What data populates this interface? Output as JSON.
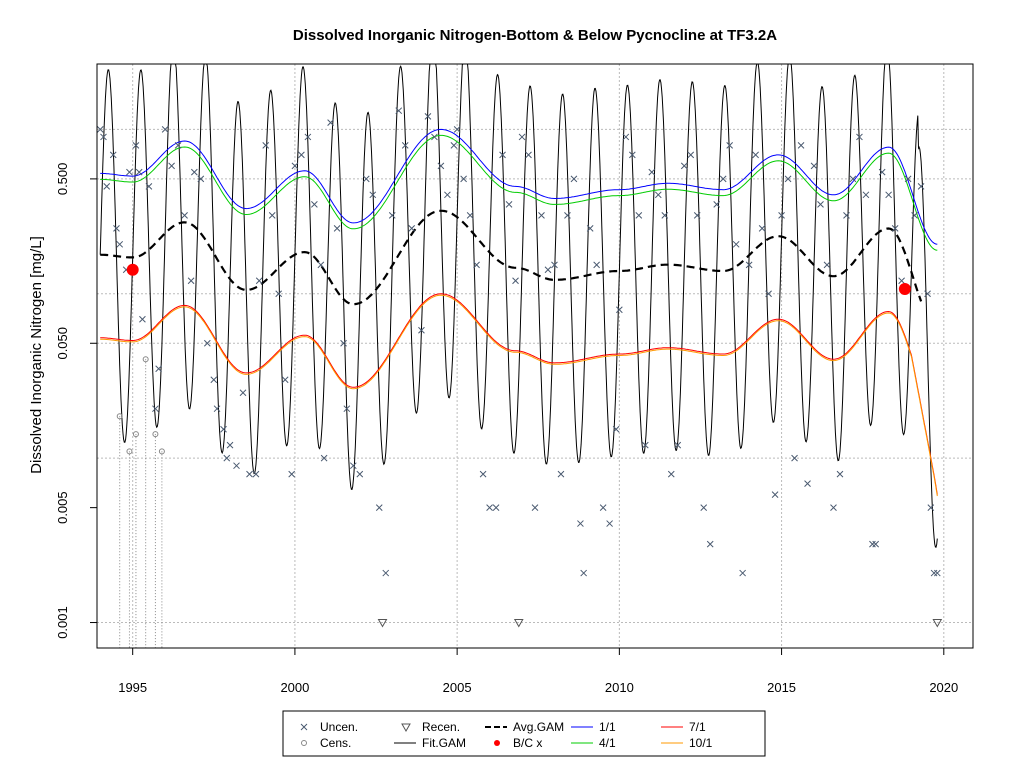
{
  "chart_data": {
    "type": "scatter",
    "title": "Dissolved Inorganic Nitrogen-Bottom & Below Pycnocline at TF3.2A",
    "xlabel": "",
    "ylabel": "Dissolved Inorganic Nitrogen [mg/L]",
    "xlim": [
      1993.9,
      2020.9
    ],
    "ylim": [
      0.0007,
      2.5
    ],
    "y_scale": "log",
    "grid": true,
    "legend_position": "bottom",
    "x_ticks": [
      1995,
      2000,
      2005,
      2010,
      2015,
      2020
    ],
    "x_tick_labels": [
      "1995",
      "2000",
      "2005",
      "2010",
      "2015",
      "2020"
    ],
    "y_ticks": [
      0.001,
      0.005,
      0.05,
      0.5
    ],
    "y_tick_labels": [
      "0.001",
      "0.005",
      "0.050",
      "0.500"
    ],
    "y_grid_lines": [
      0.001,
      0.01,
      0.05,
      0.1,
      0.5,
      1.0
    ],
    "legend": [
      {
        "label": "Uncen.",
        "symbol": "x",
        "color": "#4a5a70"
      },
      {
        "label": "Cens.",
        "symbol": "o",
        "color": "#888888"
      },
      {
        "label": "Recen.",
        "symbol": "triangle-down",
        "color": "#555555"
      },
      {
        "label": "Fit.GAM",
        "symbol": "line",
        "color": "#000000"
      },
      {
        "label": "Avg.GAM",
        "symbol": "dashed-line",
        "color": "#000000"
      },
      {
        "label": "B/C x",
        "symbol": "dot",
        "color": "#ff0000"
      },
      {
        "label": "1/1",
        "symbol": "line",
        "color": "#0000ff"
      },
      {
        "label": "4/1",
        "symbol": "line",
        "color": "#00cc00"
      },
      {
        "label": "7/1",
        "symbol": "line",
        "color": "#ff0000"
      },
      {
        "label": "10/1",
        "symbol": "line",
        "color": "#ff9900"
      }
    ],
    "series": [
      {
        "name": "Uncen.",
        "points": [
          [
            1994.0,
            1.0
          ],
          [
            1994.1,
            0.9
          ],
          [
            1994.2,
            0.45
          ],
          [
            1994.4,
            0.7
          ],
          [
            1994.5,
            0.25
          ],
          [
            1994.6,
            0.2
          ],
          [
            1994.8,
            0.14
          ],
          [
            1994.9,
            0.55
          ],
          [
            1995.1,
            0.8
          ],
          [
            1995.2,
            0.55
          ],
          [
            1995.3,
            0.07
          ],
          [
            1995.5,
            0.45
          ],
          [
            1995.7,
            0.02
          ],
          [
            1995.8,
            0.035
          ],
          [
            1996.0,
            1.0
          ],
          [
            1996.2,
            0.6
          ],
          [
            1996.4,
            0.8
          ],
          [
            1996.6,
            0.3
          ],
          [
            1996.8,
            0.12
          ],
          [
            1996.9,
            0.55
          ],
          [
            1997.1,
            0.5
          ],
          [
            1997.3,
            0.05
          ],
          [
            1997.5,
            0.03
          ],
          [
            1997.6,
            0.02
          ],
          [
            1997.8,
            0.015
          ],
          [
            1997.9,
            0.01
          ],
          [
            1998.0,
            0.012
          ],
          [
            1998.2,
            0.009
          ],
          [
            1998.4,
            0.025
          ],
          [
            1998.6,
            0.008
          ],
          [
            1998.8,
            0.008
          ],
          [
            1998.9,
            0.12
          ],
          [
            1999.1,
            0.8
          ],
          [
            1999.3,
            0.3
          ],
          [
            1999.5,
            0.1
          ],
          [
            1999.7,
            0.03
          ],
          [
            1999.9,
            0.008
          ],
          [
            2000.0,
            0.6
          ],
          [
            2000.2,
            0.7
          ],
          [
            2000.4,
            0.9
          ],
          [
            2000.6,
            0.35
          ],
          [
            2000.8,
            0.15
          ],
          [
            2000.9,
            0.01
          ],
          [
            2001.1,
            1.1
          ],
          [
            2001.3,
            0.25
          ],
          [
            2001.5,
            0.05
          ],
          [
            2001.6,
            0.02
          ],
          [
            2001.8,
            0.009
          ],
          [
            2002.0,
            0.008
          ],
          [
            2002.2,
            0.5
          ],
          [
            2002.4,
            0.4
          ],
          [
            2002.6,
            0.005
          ],
          [
            2002.8,
            0.002
          ],
          [
            2003.0,
            0.3
          ],
          [
            2003.2,
            1.3
          ],
          [
            2003.4,
            0.8
          ],
          [
            2003.6,
            0.25
          ],
          [
            2003.9,
            0.06
          ],
          [
            2004.1,
            1.2
          ],
          [
            2004.3,
            0.9
          ],
          [
            2004.5,
            0.6
          ],
          [
            2004.7,
            0.4
          ],
          [
            2004.9,
            0.8
          ],
          [
            2005.0,
            1.0
          ],
          [
            2005.2,
            0.5
          ],
          [
            2005.4,
            0.3
          ],
          [
            2005.6,
            0.15
          ],
          [
            2005.8,
            0.008
          ],
          [
            2006.0,
            0.005
          ],
          [
            2006.2,
            0.005
          ],
          [
            2006.4,
            0.7
          ],
          [
            2006.6,
            0.35
          ],
          [
            2006.8,
            0.12
          ],
          [
            2007.0,
            0.9
          ],
          [
            2007.2,
            0.7
          ],
          [
            2007.4,
            0.005
          ],
          [
            2007.6,
            0.3
          ],
          [
            2007.8,
            0.14
          ],
          [
            2008.0,
            0.15
          ],
          [
            2008.2,
            0.008
          ],
          [
            2008.4,
            0.3
          ],
          [
            2008.6,
            0.5
          ],
          [
            2008.8,
            0.004
          ],
          [
            2008.9,
            0.002
          ],
          [
            2009.1,
            0.25
          ],
          [
            2009.3,
            0.15
          ],
          [
            2009.5,
            0.005
          ],
          [
            2009.7,
            0.004
          ],
          [
            2009.9,
            0.015
          ],
          [
            2010.0,
            0.08
          ],
          [
            2010.2,
            0.9
          ],
          [
            2010.4,
            0.7
          ],
          [
            2010.6,
            0.3
          ],
          [
            2010.8,
            0.012
          ],
          [
            2011.0,
            0.55
          ],
          [
            2011.2,
            0.4
          ],
          [
            2011.4,
            0.3
          ],
          [
            2011.6,
            0.008
          ],
          [
            2011.8,
            0.012
          ],
          [
            2012.0,
            0.6
          ],
          [
            2012.2,
            0.7
          ],
          [
            2012.4,
            0.3
          ],
          [
            2012.6,
            0.005
          ],
          [
            2012.8,
            0.003
          ],
          [
            2013.0,
            0.35
          ],
          [
            2013.2,
            0.5
          ],
          [
            2013.4,
            0.8
          ],
          [
            2013.6,
            0.2
          ],
          [
            2013.8,
            0.002
          ],
          [
            2014.0,
            0.15
          ],
          [
            2014.2,
            0.7
          ],
          [
            2014.4,
            0.25
          ],
          [
            2014.6,
            0.1
          ],
          [
            2014.8,
            0.006
          ],
          [
            2015.0,
            0.3
          ],
          [
            2015.2,
            0.5
          ],
          [
            2015.4,
            0.01
          ],
          [
            2015.6,
            0.8
          ],
          [
            2015.8,
            0.007
          ],
          [
            2016.0,
            0.6
          ],
          [
            2016.2,
            0.35
          ],
          [
            2016.4,
            0.15
          ],
          [
            2016.6,
            0.005
          ],
          [
            2016.8,
            0.008
          ],
          [
            2017.0,
            0.3
          ],
          [
            2017.2,
            0.5
          ],
          [
            2017.4,
            0.9
          ],
          [
            2017.6,
            0.4
          ],
          [
            2017.8,
            0.003
          ],
          [
            2017.9,
            0.003
          ],
          [
            2018.1,
            0.55
          ],
          [
            2018.3,
            0.4
          ],
          [
            2018.5,
            0.25
          ],
          [
            2018.7,
            0.12
          ],
          [
            2018.9,
            0.5
          ],
          [
            2019.1,
            0.3
          ],
          [
            2019.3,
            0.45
          ],
          [
            2019.5,
            0.1
          ],
          [
            2019.6,
            0.005
          ],
          [
            2019.7,
            0.002
          ],
          [
            2019.8,
            0.002
          ]
        ]
      },
      {
        "name": "Cens.",
        "points": [
          [
            1994.6,
            0.018
          ],
          [
            1994.9,
            0.011
          ],
          [
            1995.1,
            0.014
          ],
          [
            1995.4,
            0.04
          ],
          [
            1995.7,
            0.014
          ],
          [
            1995.9,
            0.011
          ]
        ]
      },
      {
        "name": "Recen.",
        "points": [
          [
            2002.7,
            0.001
          ],
          [
            2006.9,
            0.001
          ],
          [
            2019.8,
            0.001
          ]
        ]
      },
      {
        "name": "B/C x",
        "points": [
          [
            1995.0,
            0.14
          ],
          [
            2018.8,
            0.107
          ]
        ]
      }
    ],
    "curves": [
      {
        "name": "Fit.GAM",
        "kind": "seasonal",
        "color": "#000000"
      },
      {
        "name": "Avg.GAM",
        "kind": "trend",
        "color": "#000000",
        "dash": true
      },
      {
        "name": "1/1",
        "kind": "trend",
        "color": "#0000ff"
      },
      {
        "name": "4/1",
        "kind": "trend",
        "color": "#00cc00"
      },
      {
        "name": "7/1",
        "kind": "trend",
        "color": "#ff0000"
      },
      {
        "name": "10/1",
        "kind": "trend",
        "color": "#ff9900"
      }
    ]
  }
}
